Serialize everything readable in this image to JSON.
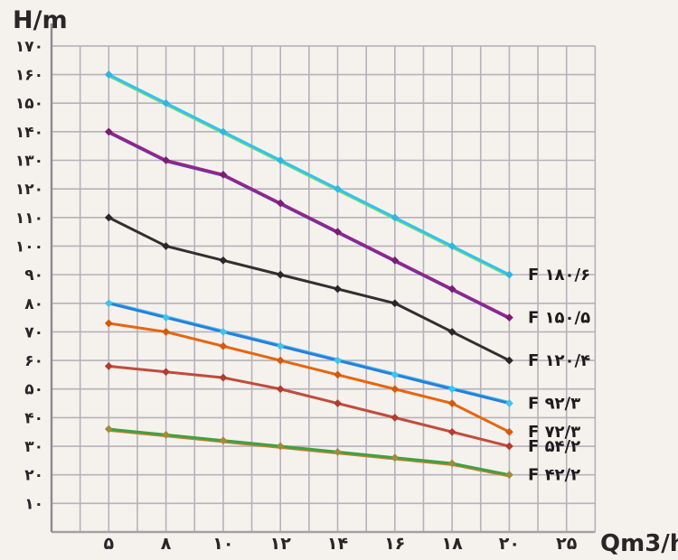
{
  "chart_data": {
    "type": "line",
    "title": "",
    "ylabel": "H/m",
    "xlabel": "Qm3/h",
    "grid": true,
    "legend_position": "right-inline-labels",
    "x_values": [
      5,
      8,
      10,
      12,
      14,
      16,
      18,
      20,
      25
    ],
    "x_tick_labels": [
      "۵",
      "۸",
      "۱۰",
      "۱۲",
      "۱۴",
      "۱۶",
      "۱۸",
      "۲۰",
      "۲۵"
    ],
    "y_tick_values": [
      10,
      20,
      30,
      40,
      50,
      60,
      70,
      80,
      90,
      100,
      110,
      120,
      130,
      140,
      150,
      160,
      170
    ],
    "y_tick_labels": [
      "۱۰",
      "۲۰",
      "۳۰",
      "۴۰",
      "۵۰",
      "۶۰",
      "۷۰",
      "۸۰",
      "۹۰",
      "۱۰۰",
      "۱۱۰",
      "۱۲۰",
      "۱۳۰",
      "۱۴۰",
      "۱۵۰",
      "۱۶۰",
      "۱۷۰"
    ],
    "ylim": [
      0,
      175
    ],
    "x_points_plotted": [
      5,
      8,
      10,
      12,
      14,
      16,
      18,
      20
    ],
    "series": [
      {
        "label": "F ۱۸۰/۶",
        "label_latin": "F 180/6",
        "color": "#31c3ec",
        "marker_color": "#2fb6e2",
        "companion_color": "#7cd874",
        "companion_dy": 2,
        "values": [
          160,
          150,
          140,
          130,
          120,
          110,
          100,
          90
        ]
      },
      {
        "label": "F ۱۵۰/۵",
        "label_latin": "F 150/5",
        "color": "#97248a",
        "marker_color": "#7c1d72",
        "companion_color": "#4b3fc0",
        "companion_dy": 1.5,
        "values": [
          140,
          130,
          125,
          115,
          105,
          95,
          85,
          75
        ]
      },
      {
        "label": "F ۱۲۰/۴",
        "label_latin": "F 120/4",
        "color": "#322f30",
        "marker_color": "#2a2728",
        "companion_color": null,
        "companion_dy": 0,
        "values": [
          110,
          100,
          95,
          90,
          85,
          80,
          70,
          60
        ]
      },
      {
        "label": "F ۹۲/۳",
        "label_latin": "F 92/3",
        "color": "#2b7ce0",
        "marker_color": "#3fc4ec",
        "companion_color": "#4ecaec",
        "companion_dy": -1.6,
        "values": [
          80,
          75,
          70,
          65,
          60,
          55,
          50,
          45
        ]
      },
      {
        "label": "F ۷۲/۳",
        "label_latin": "F 72/3",
        "color": "#e8650f",
        "marker_color": "#d4590e",
        "companion_color": null,
        "companion_dy": 0,
        "values": [
          73,
          70,
          65,
          60,
          55,
          50,
          45,
          35
        ]
      },
      {
        "label": "F ۵۴/۲",
        "label_latin": "F 54/2",
        "color": "#c44a3a",
        "marker_color": "#b13c2f",
        "companion_color": null,
        "companion_dy": 0,
        "values": [
          58,
          56,
          54,
          50,
          45,
          40,
          35,
          30
        ]
      },
      {
        "label": "F ۴۲/۲",
        "label_latin": "F 42/2",
        "color": "#3fa23e",
        "marker_color": "#9c8d3a",
        "companion_color": "#c57d35",
        "companion_dy": 1.8,
        "values": [
          36,
          34,
          32,
          30,
          28,
          26,
          24,
          20
        ]
      }
    ],
    "colors": {
      "background": "#f5f2ee",
      "grid": "#b7b1b9",
      "axis_spine": "#8f8a90",
      "bottom_axis": "#a5a0a6",
      "tick_text": "#2a2527",
      "series_label_text": "#1e1b1c"
    }
  }
}
